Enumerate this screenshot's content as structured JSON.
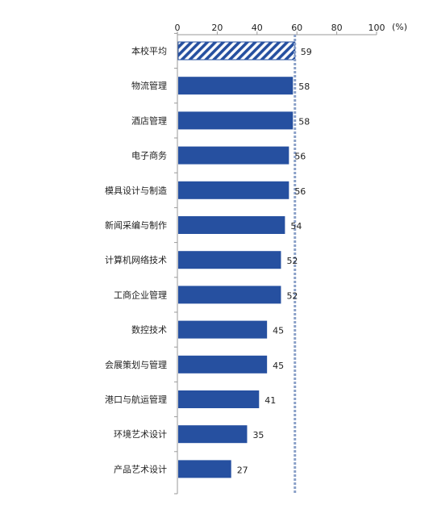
{
  "chart_data": {
    "type": "bar",
    "orientation": "horizontal",
    "title": "",
    "xlabel": "",
    "ylabel": "",
    "unit_label": "(%)",
    "xlim": [
      0,
      100
    ],
    "xticks": [
      "0",
      "20",
      "40",
      "60",
      "80",
      "100"
    ],
    "categories": [
      "本校平均",
      "物流管理",
      "酒店管理",
      "电子商务",
      "模具设计与制造",
      "新闻采编与制作",
      "计算机网络技术",
      "工商企业管理",
      "数控技术",
      "会展策划与管理",
      "港口与航运管理",
      "环境艺术设计",
      "产品艺术设计"
    ],
    "values": [
      59,
      58,
      58,
      56,
      56,
      54,
      52,
      52,
      45,
      45,
      41,
      35,
      27
    ],
    "highlighted_category": "本校平均",
    "reference_line_value": 59,
    "bar_color": "#2650a0",
    "highlight_pattern": "diagonal-hatch",
    "reference_line_color": "#8aa0c8",
    "grid": false
  }
}
